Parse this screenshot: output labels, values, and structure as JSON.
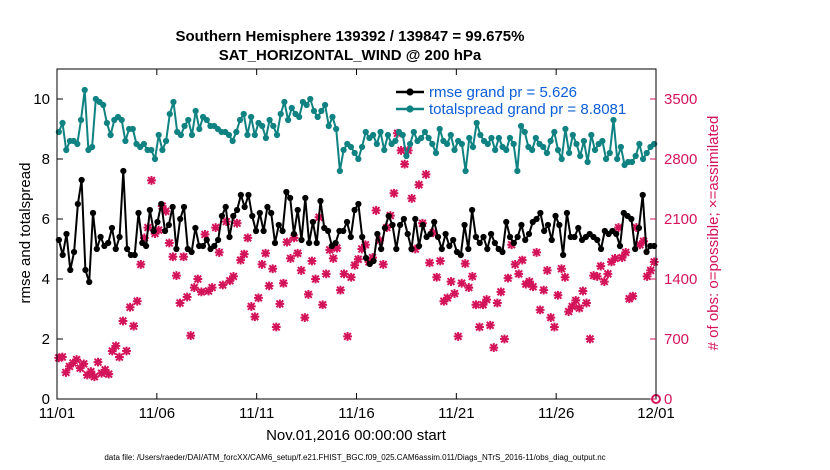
{
  "chart_data": {
    "type": "line",
    "title": "Southern Hemisphere 139392 / 139847 = 99.675%",
    "subtitle": "SAT_HORIZONTAL_WIND @ 200 hPa",
    "xlabel": "Nov.01,2016 00:00:00 start",
    "ylabel": "rmse and totalspread",
    "ylabel_right": "# of obs: o=possible; ×=assimilated",
    "x_tick_labels": [
      "11/01",
      "11/06",
      "11/11",
      "11/16",
      "11/21",
      "11/26",
      "12/01"
    ],
    "x_range_days": [
      0,
      30
    ],
    "ylim": [
      0,
      11
    ],
    "y_ticks": [
      0,
      2,
      4,
      6,
      8,
      10
    ],
    "ylim_right": [
      0,
      3850
    ],
    "y_ticks_right": [
      0,
      700,
      1400,
      2100,
      2800,
      3500
    ],
    "grid": false,
    "legend_position": "top-right",
    "colors": {
      "rmse": "#000000",
      "spread": "#108282",
      "obs": "#d4145a"
    },
    "series": [
      {
        "name": "rmse grand pr = 5.626",
        "marker": "dot",
        "values": [
          5.3,
          4.8,
          5.5,
          4.3,
          4.9,
          6.5,
          7.3,
          4.3,
          3.9,
          6.2,
          5.0,
          5.4,
          5.1,
          5.2,
          5.7,
          5.0,
          5.4,
          7.6,
          5.0,
          4.8,
          4.8,
          6.2,
          5.2,
          5.1,
          6.3,
          5.6,
          5.9,
          6.5,
          5.6,
          5.8,
          6.4,
          5.0,
          6.0,
          6.4,
          5.0,
          4.9,
          5.7,
          5.1,
          5.1,
          5.3,
          5.0,
          5.1,
          5.3,
          6.1,
          6.4,
          5.4,
          6.1,
          6.3,
          6.8,
          6.4,
          6.8,
          6.1,
          5.6,
          6.2,
          5.6,
          6.4,
          6.2,
          5.2,
          5.8,
          5.6,
          6.9,
          6.7,
          5.5,
          6.3,
          5.3,
          6.7,
          5.2,
          5.9,
          5.2,
          6.6,
          5.7,
          5.6,
          5.1,
          5.2,
          5.6,
          5.6,
          5.9,
          5.4,
          6.3,
          6.5,
          5.4,
          4.7,
          4.5,
          4.6,
          5.5,
          5.0,
          5.7,
          6.1,
          5.8,
          5.0,
          5.8,
          6.0,
          5.5,
          5.0,
          6.0,
          5.1,
          5.8,
          5.4,
          5.5,
          5.9,
          5.4,
          5.0,
          5.5,
          5.1,
          5.3,
          4.9,
          4.8,
          5.8,
          5.0,
          6.3,
          5.4,
          5.2,
          5.4,
          5.0,
          5.5,
          5.2,
          5.0,
          4.9,
          5.9,
          5.4,
          5.2,
          5.4,
          5.8,
          5.3,
          5.5,
          5.9,
          6.0,
          6.2,
          5.6,
          5.8,
          5.3,
          6.1,
          5.8,
          4.8,
          6.2,
          5.4,
          5.4,
          5.7,
          5.3,
          5.4,
          5.5,
          5.4,
          5.3,
          5.0,
          5.6,
          5.5,
          5.6,
          5.5,
          5.1,
          6.2,
          6.1,
          6.0,
          5.0,
          5.7,
          6.8,
          4.9,
          5.1,
          5.1
        ]
      },
      {
        "name": "totalspread grand pr = 8.8081",
        "marker": "dot",
        "values": [
          8.9,
          9.2,
          8.3,
          8.6,
          8.6,
          8.5,
          9.3,
          10.3,
          8.3,
          8.4,
          10.0,
          9.9,
          9.8,
          9.2,
          8.8,
          9.3,
          9.4,
          9.3,
          8.6,
          9.0,
          9.0,
          8.5,
          8.4,
          8.5,
          8.3,
          8.3,
          8.0,
          8.8,
          8.3,
          8.6,
          9.5,
          9.9,
          8.9,
          8.8,
          9.1,
          9.3,
          8.8,
          9.6,
          9.0,
          9.4,
          9.3,
          9.1,
          9.1,
          9.0,
          8.9,
          8.9,
          8.8,
          8.6,
          8.9,
          9.3,
          9.5,
          8.8,
          9.4,
          8.8,
          9.2,
          9.1,
          8.7,
          9.3,
          9.1,
          8.8,
          9.5,
          9.9,
          9.3,
          9.7,
          9.5,
          9.4,
          9.9,
          9.8,
          10.0,
          9.6,
          9.4,
          9.6,
          9.8,
          9.1,
          9.4,
          9.0,
          7.6,
          8.3,
          8.5,
          8.4,
          8.2,
          8.0,
          8.4,
          8.9,
          8.7,
          8.8,
          8.5,
          8.9,
          8.3,
          8.8,
          8.5,
          8.6,
          8.9,
          8.8,
          8.1,
          8.5,
          8.9,
          8.6,
          8.7,
          8.9,
          8.7,
          8.5,
          8.2,
          9.0,
          8.6,
          8.5,
          8.8,
          8.3,
          8.6,
          8.5,
          7.6,
          8.7,
          8.4,
          9.2,
          8.8,
          8.6,
          8.5,
          8.7,
          8.3,
          8.7,
          8.4,
          8.3,
          8.7,
          8.5,
          7.6,
          9.1,
          8.9,
          8.4,
          8.3,
          8.7,
          8.5,
          8.4,
          8.2,
          8.6,
          8.9,
          8.3,
          8.0,
          9.0,
          8.2,
          8.8,
          8.5,
          8.1,
          8.6,
          7.9,
          8.8,
          8.3,
          8.5,
          8.6,
          8.0,
          8.2,
          9.3,
          8.0,
          8.4,
          7.8,
          7.9,
          7.9,
          8.1,
          8.5,
          8.0,
          8.2,
          8.4,
          8.5
        ]
      },
      {
        "name": "obs possible (o)",
        "marker": "open-circle",
        "axis": "right",
        "values": []
      },
      {
        "name": "obs assimilated (×)",
        "marker": "x",
        "axis": "right",
        "values": [
          480,
          490,
          310,
          380,
          420,
          460,
          360,
          410,
          280,
          320,
          260,
          430,
          300,
          340,
          290,
          560,
          620,
          490,
          910,
          560,
          1070,
          850,
          1140,
          1570,
          1880,
          2000,
          2550,
          1930,
          1970,
          2250,
          2190,
          1820,
          1660,
          1440,
          1120,
          1660,
          1190,
          740,
          1300,
          1400,
          1250,
          1920,
          1260,
          1300,
          2000,
          1710,
          1330,
          2070,
          1380,
          1430,
          2050,
          1620,
          1690,
          1880,
          1080,
          960,
          1180,
          1570,
          1700,
          1320,
          1520,
          840,
          1110,
          1350,
          1830,
          1640,
          1880,
          1700,
          1500,
          950,
          1220,
          1610,
          1400,
          2120,
          1100,
          1460,
          1740,
          1640,
          1760,
          1270,
          1460,
          730,
          1420,
          1560,
          1630,
          1750,
          1800,
          1600,
          1650,
          2200,
          1850,
          1570,
          2000,
          2140,
          2400,
          3100,
          2900,
          2740,
          2900,
          2340,
          1750,
          2500,
          2050,
          2620,
          1590,
          1940,
          1420,
          1610,
          1140,
          1180,
          1370,
          1230,
          730,
          1350,
          1580,
          1300,
          1430,
          1100,
          840,
          1100,
          1160,
          860,
          600,
          1120,
          1250,
          700,
          1410,
          1800,
          1570,
          1460,
          1620,
          1340,
          1370,
          1310,
          1710,
          1040,
          1270,
          1500,
          950,
          840,
          1210,
          1520,
          1420,
          1020,
          1080,
          1150,
          1060,
          1260,
          1120,
          700,
          1440,
          1430,
          1550,
          1370,
          1460,
          1600,
          1640,
          2000,
          1650,
          1710,
          1170,
          1200,
          2000,
          1800,
          1840,
          1430,
          1500,
          1600
        ]
      }
    ],
    "footnote": "data file: /Users/raeder/DAI/ATM_forcXX/CAM6_setup/f.e21.FHIST_BGC.f09_025.CAM6assim.011/Diags_NTrS_2016-11/obs_diag_output.nc"
  }
}
